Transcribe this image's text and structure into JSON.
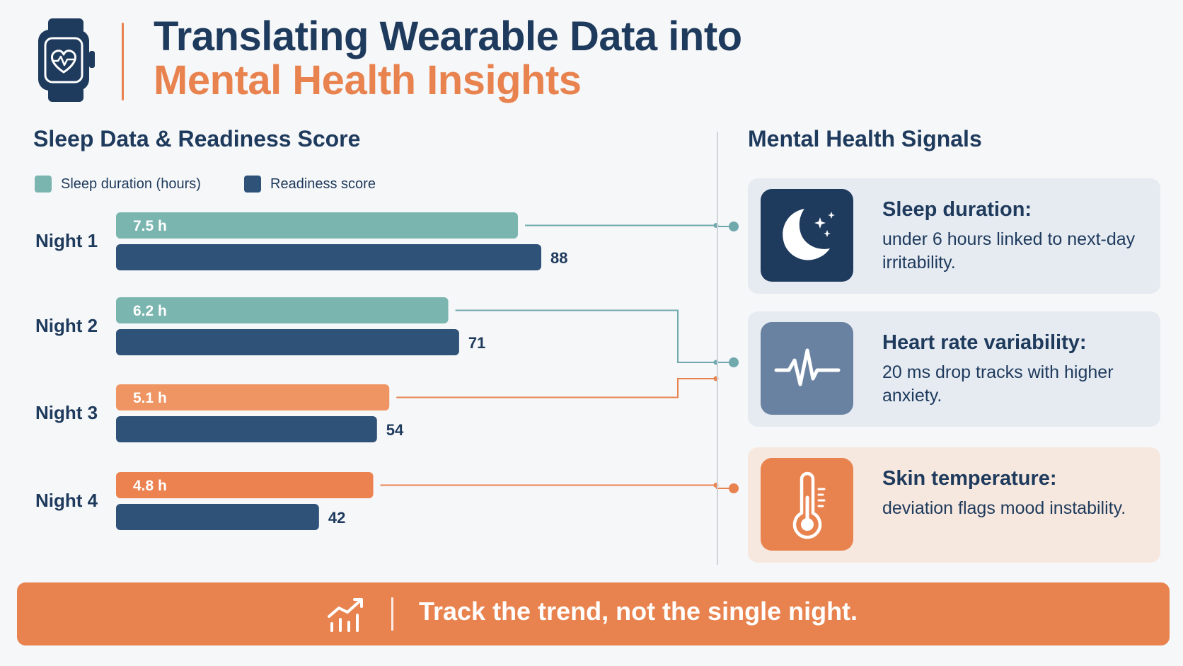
{
  "header": {
    "title_line1": "Translating Wearable Data into",
    "title_line2": "Mental Health Insights",
    "icon": "smartwatch-heart-icon"
  },
  "left_section": {
    "title": "Sleep Data & Readiness Score"
  },
  "right_section": {
    "title": "Mental Health Signals",
    "cards": [
      {
        "icon": "moon-stars-icon",
        "title": "Sleep duration:",
        "body": "under 6 hours linked to next-day irritability.",
        "icon_color": "#1e3a5c",
        "bg_color": "#e6ebf2"
      },
      {
        "icon": "heartbeat-icon",
        "title": "Heart rate variability:",
        "body": "20 ms drop tracks with higher anxiety.",
        "icon_color": "#6a82a1",
        "bg_color": "#e6ebf2"
      },
      {
        "icon": "thermometer-icon",
        "title": "Skin temperature:",
        "body": "deviation flags mood instability.",
        "icon_color": "#e8834f",
        "bg_color": "#f7e8df"
      }
    ]
  },
  "banner": {
    "text": "Track the trend, not the single night.",
    "icon": "trend-chart-icon"
  },
  "colors": {
    "navy": "#1e3a5c",
    "teal": "#7ab5b0",
    "orange": "#e8834f",
    "bar_navy": "#2f5279"
  },
  "chart_data": {
    "type": "bar",
    "orientation": "horizontal",
    "categories": [
      "Night 1",
      "Night 2",
      "Night 3",
      "Night 4"
    ],
    "series": [
      {
        "name": "Sleep duration (hours)",
        "values": [
          7.5,
          6.2,
          5.1,
          4.8
        ],
        "labels": [
          "7.5 h",
          "6.2 h",
          "5.1 h",
          "4.8 h"
        ],
        "colors": [
          "#7ab5b0",
          "#7ab5b0",
          "#ef9563",
          "#ec8250"
        ],
        "legend_color": "#7ab5b0"
      },
      {
        "name": "Readiness score",
        "values": [
          88,
          71,
          54,
          42
        ],
        "labels": [
          "88",
          "71",
          "54",
          "42"
        ],
        "colors": [
          "#2f5279",
          "#2f5279",
          "#2f5279",
          "#2f5279"
        ],
        "legend_color": "#2f5279"
      }
    ],
    "legend_position": "top-left",
    "grid": false
  }
}
